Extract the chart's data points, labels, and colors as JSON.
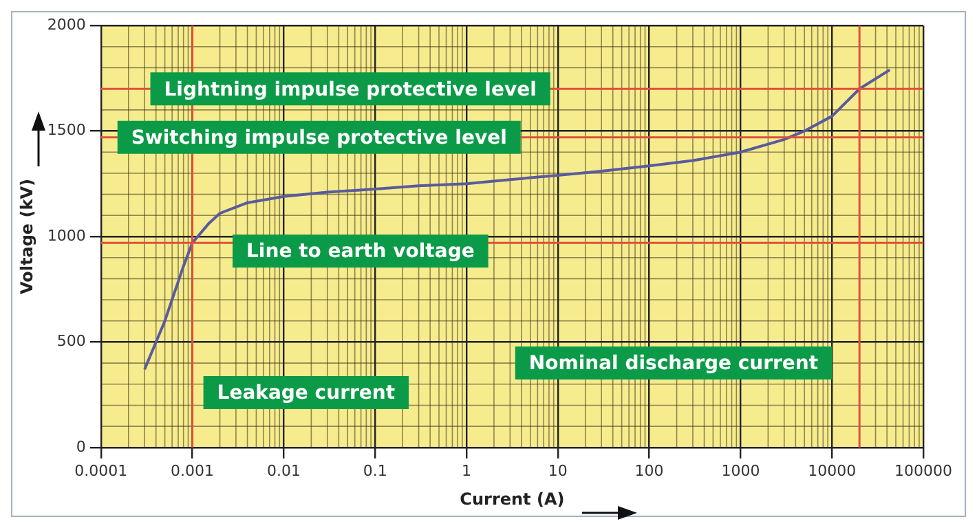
{
  "chart_data": {
    "type": "line",
    "xlabel": "Current (A)",
    "ylabel": "Voltage (kV)",
    "x": [
      0.0003,
      0.0005,
      0.0008,
      0.001,
      0.0015,
      0.002,
      0.004,
      0.01,
      0.03,
      0.1,
      0.3,
      1,
      3,
      10,
      30,
      100,
      300,
      1000,
      3000,
      5000,
      10000,
      20000,
      43000
    ],
    "series": [
      {
        "color": "#5a5a9e",
        "values": [
          370,
          600,
          860,
          970,
          1060,
          1110,
          1160,
          1190,
          1210,
          1225,
          1240,
          1250,
          1270,
          1290,
          1310,
          1335,
          1360,
          1400,
          1460,
          1500,
          1570,
          1700,
          1790
        ]
      }
    ],
    "log": "x",
    "xlim": [
      0.0001,
      100000
    ],
    "xticks": [
      0.0001,
      0.001,
      0.01,
      0.1,
      1,
      10,
      100,
      1000,
      10000,
      100000
    ],
    "ylim": [
      0,
      2000
    ],
    "yticks": [
      0,
      500,
      1000,
      1500,
      2000
    ],
    "grid": true,
    "legend": false,
    "marker": "none",
    "line_style": "solid",
    "ref_lines": [
      {
        "axis": "y",
        "value": 1700,
        "label": "Lightning impulse protective level",
        "color": "#e0503c"
      },
      {
        "axis": "y",
        "value": 1470,
        "label": "Switching impulse protective level",
        "color": "#e0503c"
      },
      {
        "axis": "y",
        "value": 970,
        "label": "Line to earth voltage",
        "color": "#e0503c"
      },
      {
        "axis": "x",
        "value": 0.001,
        "label": "Leakage current",
        "color": "#e0503c"
      },
      {
        "axis": "x",
        "value": 20000,
        "label": "Nominal discharge current",
        "color": "#e0503c"
      }
    ]
  }
}
